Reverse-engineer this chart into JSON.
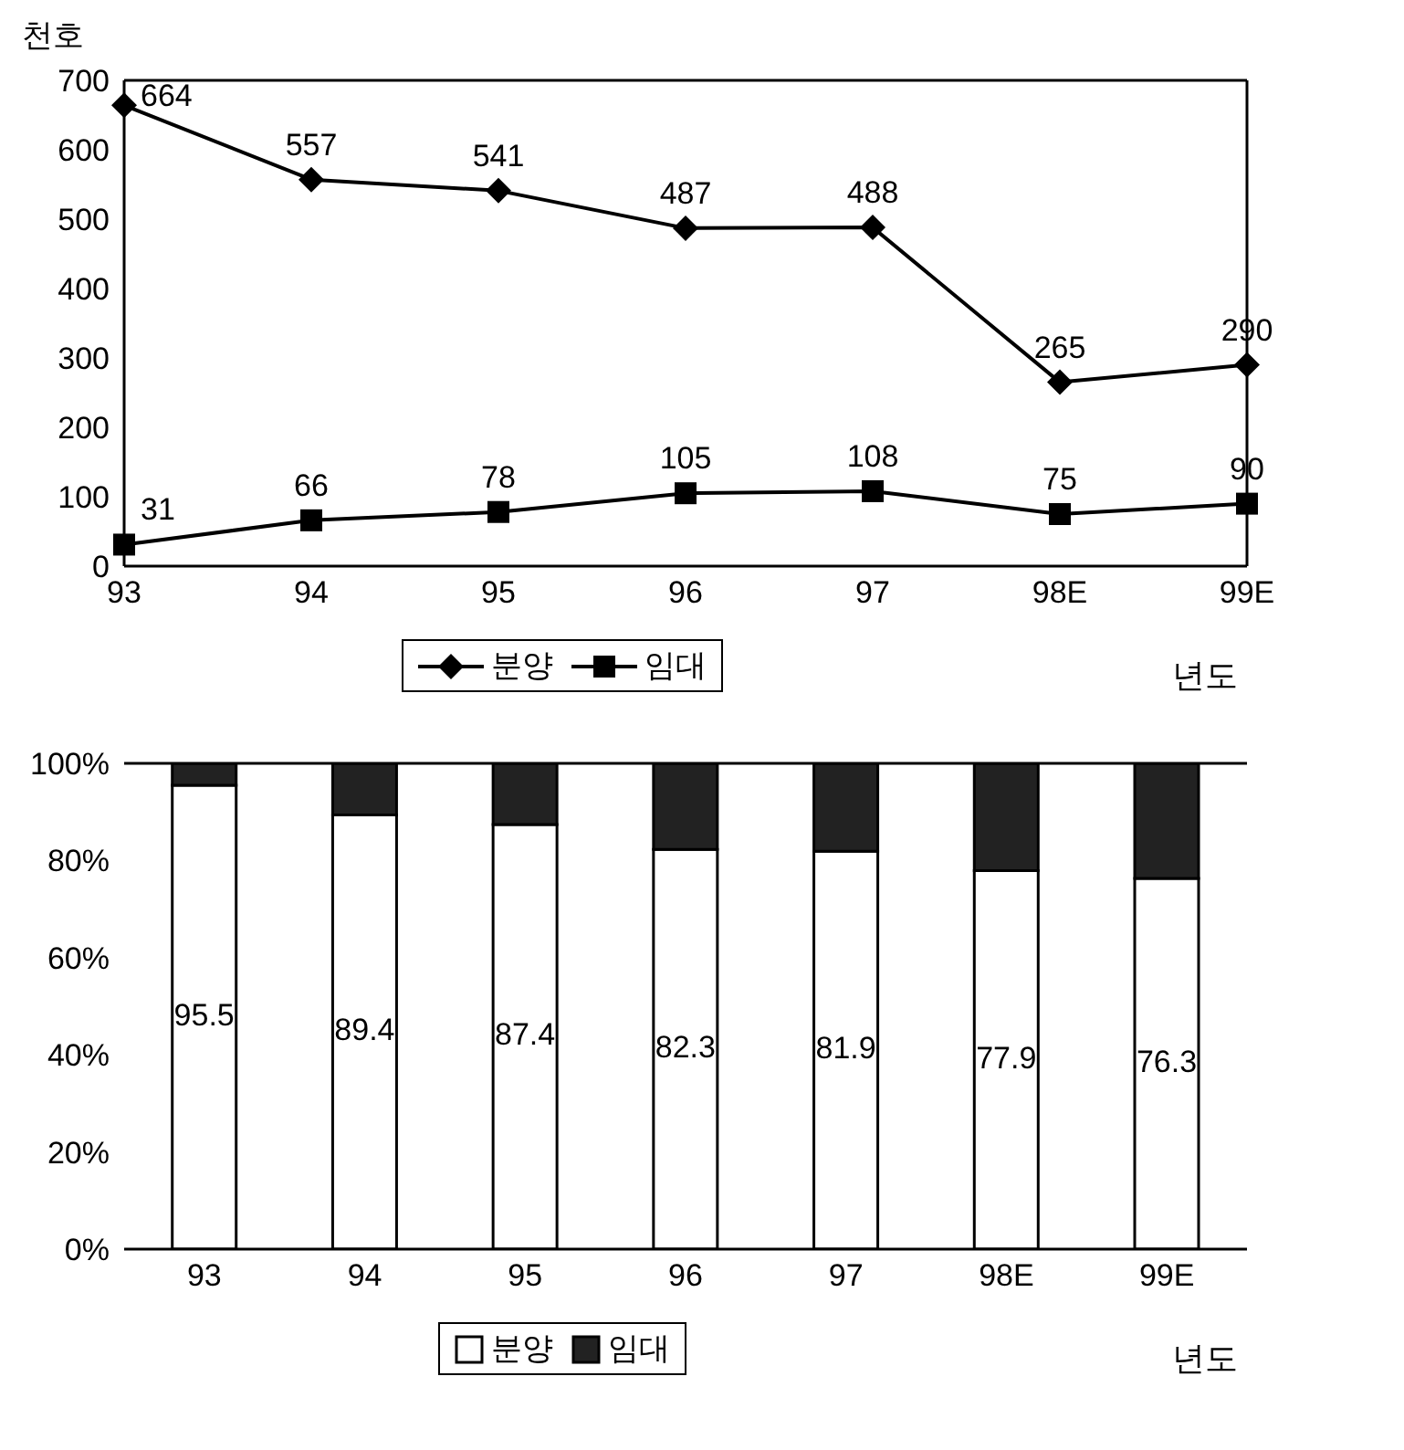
{
  "chart_data": [
    {
      "type": "line",
      "ylabel": "천호",
      "xlabel": "년도",
      "categories": [
        "93",
        "94",
        "95",
        "96",
        "97",
        "98E",
        "99E"
      ],
      "series": [
        {
          "name": "분양",
          "color": "#000000",
          "marker": "diamond",
          "values": [
            664,
            557,
            541,
            487,
            488,
            265,
            290
          ]
        },
        {
          "name": "임대",
          "color": "#000000",
          "marker": "square",
          "values": [
            31,
            66,
            78,
            105,
            108,
            75,
            90
          ]
        }
      ],
      "ylim": [
        0,
        700
      ],
      "yticks": [
        0,
        100,
        200,
        300,
        400,
        500,
        600,
        700
      ],
      "data_labels": true,
      "legend": "bottom",
      "grid": false
    },
    {
      "type": "bar",
      "stacked": true,
      "xlabel": "년도",
      "categories": [
        "93",
        "94",
        "95",
        "96",
        "97",
        "98E",
        "99E"
      ],
      "series": [
        {
          "name": "분양",
          "color": "#ffffff",
          "values": [
            95.5,
            89.4,
            87.4,
            82.3,
            81.9,
            77.9,
            76.3
          ],
          "value_labels": [
            "95.5",
            "89.4",
            "87.4",
            "82.3",
            "81.9",
            "77.9",
            "76.3"
          ]
        },
        {
          "name": "임대",
          "color": "#222222",
          "values": [
            4.5,
            10.6,
            12.6,
            17.7,
            18.1,
            22.1,
            23.7
          ]
        }
      ],
      "ylim": [
        0,
        100
      ],
      "yticks": [
        {
          "value": 0,
          "label": "0%"
        },
        {
          "value": 20,
          "label": "20%"
        },
        {
          "value": 40,
          "label": "40%"
        },
        {
          "value": 60,
          "label": "60%"
        },
        {
          "value": 80,
          "label": "80%"
        },
        {
          "value": 100,
          "label": "100%"
        }
      ],
      "legend": "bottom",
      "grid": false
    }
  ]
}
